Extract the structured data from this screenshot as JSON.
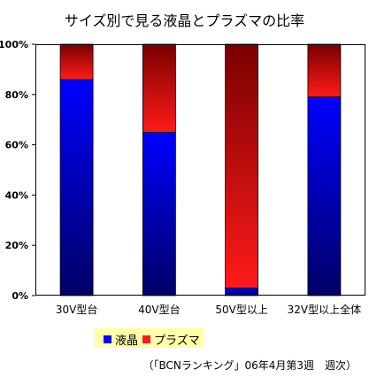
{
  "chart_data": {
    "type": "bar",
    "stacked": true,
    "title": "サイズ別で見る液晶とプラズマの比率",
    "categories": [
      "30V型台",
      "40V型台",
      "50V型以上",
      "32V型以上全体"
    ],
    "series": [
      {
        "name": "液晶",
        "values": [
          86,
          65,
          3,
          79
        ],
        "color_top": "#0000ff",
        "color_bottom": "#000066"
      },
      {
        "name": "プラズマ",
        "values": [
          14,
          35,
          97,
          21
        ],
        "color_top": "#7a0000",
        "color_bottom": "#ff1a1a"
      }
    ],
    "ylim": [
      0,
      100
    ],
    "yticks": [
      "0%",
      "20%",
      "40%",
      "60%",
      "80%",
      "100%"
    ],
    "grid": false,
    "legend_position": "bottom-left",
    "source_note": "（「BCNランキング」06年4月第3週　週次）"
  }
}
